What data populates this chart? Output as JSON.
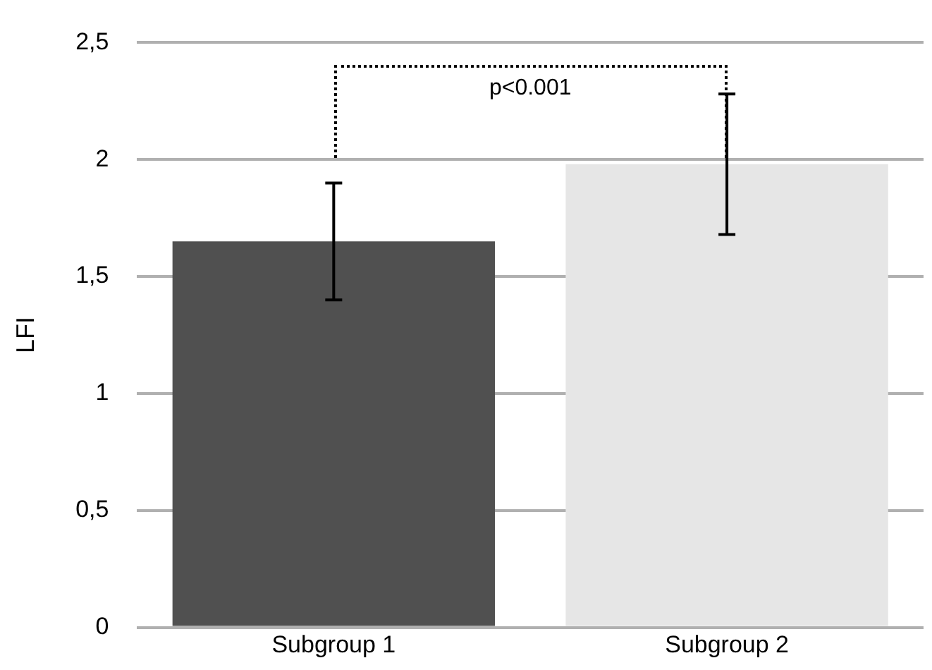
{
  "chart_data": {
    "type": "bar",
    "ylabel": "LFI",
    "categories": [
      "Subgroup 1",
      "Subgroup 2"
    ],
    "values": [
      1.65,
      1.98
    ],
    "colors": [
      "#505050",
      "#e6e6e6"
    ],
    "errors": [
      0.25,
      0.3
    ],
    "ylim": [
      0,
      2.5
    ],
    "yticks": [
      0,
      {
        "value": 0.5,
        "label": "0,5"
      },
      1,
      {
        "value": 1.5,
        "label": "1,5"
      },
      2,
      {
        "value": 2.5,
        "label": "2,5"
      }
    ],
    "grid": "y",
    "annotations": [
      "p<0.001"
    ]
  }
}
